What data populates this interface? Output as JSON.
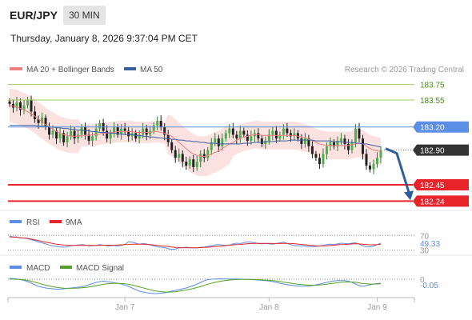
{
  "header": {
    "symbol": "EUR/JPY",
    "timeframe": "30 MIN",
    "datetime": "Thursday, January 8, 2026 9:37:04 PM CET"
  },
  "legend": {
    "ma20_bb": "MA 20 + Bollinger Bands",
    "ma50": "MA 50",
    "copyright": "Research © 2026 Trading Central",
    "rsi": "RSI",
    "rsi_ma": "9MA",
    "macd": "MACD",
    "macd_signal": "MACD Signal"
  },
  "colors": {
    "ma20": "#f08080",
    "ma50": "#3a5f9f",
    "bb_fill": "#fbdcdc",
    "resistance_green": "#9ccc65",
    "pivot_blue": "#5b8ee6",
    "support_red": "#e8232a",
    "current_box": "#333333",
    "arrow": "#2f5e9e",
    "rsi": "#5b8ee6",
    "rsi_ma": "#e8232a",
    "macd": "#5b8ee6",
    "macd_signal": "#53a32a"
  },
  "chart_data": [
    {
      "type": "line",
      "panel": "price",
      "indicators": [
        "MA 20 + Bollinger Bands",
        "MA 50"
      ],
      "ylim": [
        182.15,
        183.85
      ],
      "x_ticks": [
        "Jan 7",
        "Jan 8",
        "Jan 9"
      ],
      "levels": [
        {
          "label": "183.75",
          "value": 183.75,
          "kind": "resistance",
          "color": "#9ccc65"
        },
        {
          "label": "183.55",
          "value": 183.55,
          "kind": "resistance",
          "color": "#9ccc65"
        },
        {
          "label": "183.20",
          "value": 183.2,
          "kind": "pivot",
          "color": "#5b8ee6"
        },
        {
          "label": "182.90",
          "value": 182.9,
          "kind": "current",
          "color": "#333333"
        },
        {
          "label": "182.45",
          "value": 182.45,
          "kind": "support",
          "color": "#e8232a"
        },
        {
          "label": "182.24",
          "value": 182.24,
          "kind": "support",
          "color": "#e8232a"
        }
      ],
      "close": [
        183.5,
        183.45,
        183.52,
        183.42,
        183.48,
        183.55,
        183.4,
        183.3,
        183.25,
        183.32,
        183.2,
        183.1,
        183.15,
        183.05,
        183.12,
        183.0,
        183.08,
        183.15,
        183.05,
        183.1,
        183.2,
        183.1,
        183.02,
        183.08,
        183.18,
        183.25,
        183.15,
        183.05,
        183.12,
        183.2,
        183.1,
        183.18,
        183.15,
        183.08,
        183.12,
        183.05,
        183.1,
        183.18,
        183.1,
        183.15,
        183.22,
        183.28,
        183.2,
        183.1,
        183.0,
        182.9,
        182.8,
        182.85,
        182.75,
        182.7,
        182.78,
        182.68,
        182.75,
        182.85,
        182.8,
        182.9,
        183.0,
        183.05,
        182.95,
        183.05,
        183.12,
        183.18,
        183.1,
        183.05,
        183.15,
        183.1,
        183.02,
        183.08,
        183.12,
        183.05,
        182.98,
        183.02,
        183.1,
        183.15,
        183.05,
        183.1,
        183.18,
        183.12,
        183.08,
        183.12,
        183.05,
        182.98,
        183.05,
        182.95,
        182.85,
        182.8,
        182.72,
        182.85,
        182.95,
        183.0,
        182.95,
        183.02,
        183.05,
        182.98,
        182.9,
        183.0,
        183.18,
        183.05,
        182.85,
        182.7,
        182.65,
        182.72,
        182.8,
        182.9
      ],
      "ma20": [
        183.48,
        183.47,
        183.46,
        183.44,
        183.42,
        183.4,
        183.37,
        183.34,
        183.3,
        183.27,
        183.23,
        183.2,
        183.17,
        183.14,
        183.12,
        183.1,
        183.09,
        183.08,
        183.08,
        183.08,
        183.09,
        183.09,
        183.09,
        183.1,
        183.1,
        183.11,
        183.12,
        183.12,
        183.13,
        183.13,
        183.14,
        183.14,
        183.14,
        183.14,
        183.14,
        183.13,
        183.13,
        183.13,
        183.13,
        183.13,
        183.14,
        183.14,
        183.13,
        183.12,
        183.1,
        183.08,
        183.04,
        183.0,
        182.96,
        182.92,
        182.88,
        182.85,
        182.83,
        182.82,
        182.82,
        182.83,
        182.85,
        182.87,
        182.89,
        182.92,
        182.95,
        182.98,
        183.0,
        183.03,
        183.05,
        183.07,
        183.08,
        183.09,
        183.1,
        183.1,
        183.09,
        183.09,
        183.09,
        183.09,
        183.09,
        183.09,
        183.09,
        183.09,
        183.09,
        183.09,
        183.08,
        183.07,
        183.06,
        183.04,
        183.02,
        183.0,
        182.98,
        182.97,
        182.96,
        182.96,
        182.96,
        182.96,
        182.96,
        182.96,
        182.96,
        182.97,
        182.98,
        182.99,
        182.98,
        182.95,
        182.92,
        182.9,
        182.89,
        182.88
      ],
      "ma50": [
        183.22,
        183.22,
        183.22,
        183.22,
        183.22,
        183.22,
        183.22,
        183.22,
        183.21,
        183.21,
        183.21,
        183.2,
        183.2,
        183.19,
        183.19,
        183.18,
        183.18,
        183.17,
        183.17,
        183.16,
        183.16,
        183.15,
        183.15,
        183.14,
        183.14,
        183.13,
        183.13,
        183.13,
        183.12,
        183.12,
        183.11,
        183.11,
        183.1,
        183.1,
        183.1,
        183.09,
        183.09,
        183.08,
        183.08,
        183.07,
        183.07,
        183.06,
        183.06,
        183.05,
        183.05,
        183.04,
        183.04,
        183.03,
        183.03,
        183.02,
        183.02,
        183.01,
        183.01,
        183.0,
        183.0,
        182.99,
        182.99,
        182.99,
        182.98,
        182.98,
        182.98,
        182.98,
        182.98,
        182.98,
        182.98,
        182.99,
        182.99,
        182.99,
        183.0,
        183.0,
        183.0,
        183.01,
        183.01,
        183.01,
        183.02,
        183.02,
        183.02,
        183.02,
        183.03,
        183.03,
        183.03,
        183.03,
        183.03,
        183.03,
        183.03,
        183.02,
        183.02,
        183.02,
        183.02,
        183.02,
        183.01,
        183.01,
        183.01,
        183.0,
        183.0,
        183.0,
        182.99,
        182.99,
        182.98,
        182.98,
        182.97,
        182.96,
        182.95,
        182.94
      ],
      "bb_width": [
        0.22,
        0.22,
        0.22,
        0.22,
        0.22,
        0.22,
        0.22,
        0.22,
        0.22,
        0.22,
        0.22,
        0.22,
        0.22,
        0.22,
        0.22,
        0.22,
        0.22,
        0.22,
        0.22,
        0.22,
        0.14,
        0.14,
        0.14,
        0.14,
        0.14,
        0.14,
        0.14,
        0.14,
        0.14,
        0.14,
        0.14,
        0.14,
        0.14,
        0.14,
        0.14,
        0.14,
        0.14,
        0.14,
        0.14,
        0.14,
        0.14,
        0.14,
        0.14,
        0.14,
        0.26,
        0.26,
        0.26,
        0.26,
        0.26,
        0.26,
        0.26,
        0.26,
        0.26,
        0.26,
        0.26,
        0.26,
        0.26,
        0.26,
        0.26,
        0.26,
        0.26,
        0.26,
        0.18,
        0.18,
        0.18,
        0.18,
        0.18,
        0.18,
        0.18,
        0.18,
        0.18,
        0.18,
        0.18,
        0.18,
        0.18,
        0.18,
        0.18,
        0.18,
        0.18,
        0.18,
        0.18,
        0.18,
        0.18,
        0.18,
        0.18,
        0.18,
        0.18,
        0.18,
        0.18,
        0.18,
        0.18,
        0.18,
        0.18,
        0.18,
        0.18,
        0.18,
        0.18,
        0.18,
        0.18,
        0.18,
        0.18,
        0.18,
        0.18,
        0.18
      ],
      "forecast": {
        "from": 182.9,
        "to": 182.24
      }
    },
    {
      "type": "line",
      "panel": "rsi",
      "ylim": [
        25,
        75
      ],
      "levels": [
        {
          "label": "70",
          "value": 70
        },
        {
          "label": "30",
          "value": 30
        }
      ],
      "current_label": "49.33",
      "rsi": [
        68,
        66,
        66,
        63,
        63,
        61,
        58,
        56,
        52,
        50,
        47,
        44,
        42,
        40,
        39,
        38,
        39,
        42,
        43,
        44,
        45,
        44,
        42,
        42,
        43,
        45,
        44,
        42,
        42,
        43,
        42,
        43,
        46,
        53,
        52,
        49,
        46,
        48,
        47,
        44,
        42,
        39,
        38,
        37,
        34,
        32,
        33,
        36,
        37,
        38,
        37,
        36,
        36,
        38,
        38,
        40,
        42,
        44,
        45,
        44,
        43,
        44,
        47,
        49,
        48,
        50,
        53,
        52,
        50,
        48,
        47,
        48,
        47,
        46,
        48,
        50,
        52,
        48,
        45,
        43,
        42,
        42,
        41,
        40,
        40,
        40,
        41,
        43,
        45,
        46,
        45,
        47,
        49,
        48,
        47,
        49,
        50,
        46,
        42,
        39,
        39,
        41,
        45,
        49.33
      ],
      "rsi_ma": [
        66,
        65.5,
        65,
        64,
        63,
        62,
        60,
        58,
        56,
        54,
        52,
        50,
        48,
        46,
        45,
        44,
        43.5,
        43,
        43,
        43,
        43,
        43,
        43,
        43,
        43,
        43,
        43.5,
        43.5,
        43.5,
        43.5,
        44,
        44.5,
        45,
        45.5,
        46,
        46,
        46,
        46,
        45.5,
        45,
        44,
        43,
        42,
        41,
        40,
        38.5,
        37.5,
        37,
        36.5,
        36.5,
        36.5,
        36.5,
        36.5,
        37,
        37.5,
        38,
        38.5,
        39.5,
        40.5,
        41.5,
        42.5,
        43.5,
        44.5,
        45,
        45.5,
        46.5,
        47.5,
        48,
        48.5,
        48.5,
        48.5,
        48.5,
        48.5,
        48,
        48,
        48,
        48.5,
        48.5,
        48,
        47.5,
        46.5,
        45.5,
        44.5,
        43.5,
        42.5,
        41.5,
        41.5,
        41.5,
        42,
        42.5,
        43.5,
        44.5,
        45,
        45.5,
        46,
        47,
        47.5,
        47,
        46,
        45,
        44.5,
        44.5,
        45,
        46
      ],
      "legend": [
        "RSI",
        "9MA"
      ]
    },
    {
      "type": "line",
      "panel": "macd",
      "ylim": [
        -0.2,
        0.06
      ],
      "levels": [
        {
          "label": "0",
          "value": 0
        }
      ],
      "current_label": "-0.05",
      "macd": [
        0.01,
        0.008,
        0.004,
        -0.005,
        -0.015,
        -0.03,
        -0.05,
        -0.07,
        -0.09,
        -0.1,
        -0.11,
        -0.115,
        -0.12,
        -0.125,
        -0.125,
        -0.12,
        -0.115,
        -0.11,
        -0.105,
        -0.1,
        -0.095,
        -0.085,
        -0.07,
        -0.055,
        -0.04,
        -0.03,
        -0.025,
        -0.03,
        -0.035,
        -0.045,
        -0.05,
        -0.06,
        -0.075,
        -0.09,
        -0.11,
        -0.13,
        -0.15,
        -0.16,
        -0.17,
        -0.175,
        -0.18,
        -0.18,
        -0.175,
        -0.17,
        -0.16,
        -0.15,
        -0.14,
        -0.13,
        -0.12,
        -0.11,
        -0.095,
        -0.08,
        -0.06,
        -0.04,
        -0.02,
        -0.005,
        0.0,
        0.002,
        0.004,
        0.004,
        0.003,
        0.003,
        0.002,
        0.002,
        0.001,
        0.0,
        -0.002,
        -0.005,
        -0.008,
        -0.01,
        -0.014,
        -0.018,
        -0.022,
        -0.03,
        -0.04,
        -0.05,
        -0.06,
        -0.068,
        -0.075,
        -0.08,
        -0.085,
        -0.088,
        -0.088,
        -0.085,
        -0.08,
        -0.07,
        -0.06,
        -0.05,
        -0.04,
        -0.03,
        -0.022,
        -0.018,
        -0.016,
        -0.018,
        -0.025,
        -0.04,
        -0.06,
        -0.08,
        -0.09,
        -0.08,
        -0.07,
        -0.06,
        -0.055,
        -0.05
      ],
      "signal": [
        0.0,
        0.0,
        -0.001,
        -0.003,
        -0.008,
        -0.015,
        -0.025,
        -0.037,
        -0.05,
        -0.062,
        -0.074,
        -0.085,
        -0.094,
        -0.102,
        -0.108,
        -0.112,
        -0.114,
        -0.114,
        -0.113,
        -0.111,
        -0.108,
        -0.104,
        -0.098,
        -0.09,
        -0.081,
        -0.072,
        -0.064,
        -0.058,
        -0.054,
        -0.052,
        -0.052,
        -0.054,
        -0.058,
        -0.064,
        -0.073,
        -0.084,
        -0.096,
        -0.108,
        -0.12,
        -0.132,
        -0.142,
        -0.15,
        -0.156,
        -0.16,
        -0.162,
        -0.16,
        -0.156,
        -0.15,
        -0.143,
        -0.135,
        -0.126,
        -0.116,
        -0.104,
        -0.091,
        -0.077,
        -0.063,
        -0.05,
        -0.039,
        -0.03,
        -0.022,
        -0.016,
        -0.011,
        -0.007,
        -0.005,
        -0.003,
        -0.002,
        -0.002,
        -0.003,
        -0.004,
        -0.006,
        -0.008,
        -0.011,
        -0.014,
        -0.018,
        -0.023,
        -0.029,
        -0.036,
        -0.043,
        -0.05,
        -0.056,
        -0.062,
        -0.067,
        -0.071,
        -0.074,
        -0.075,
        -0.075,
        -0.072,
        -0.068,
        -0.062,
        -0.056,
        -0.05,
        -0.044,
        -0.039,
        -0.035,
        -0.034,
        -0.035,
        -0.039,
        -0.046,
        -0.054,
        -0.058,
        -0.061,
        -0.061,
        -0.06,
        -0.058
      ],
      "legend": [
        "MACD",
        "MACD Signal"
      ]
    }
  ]
}
